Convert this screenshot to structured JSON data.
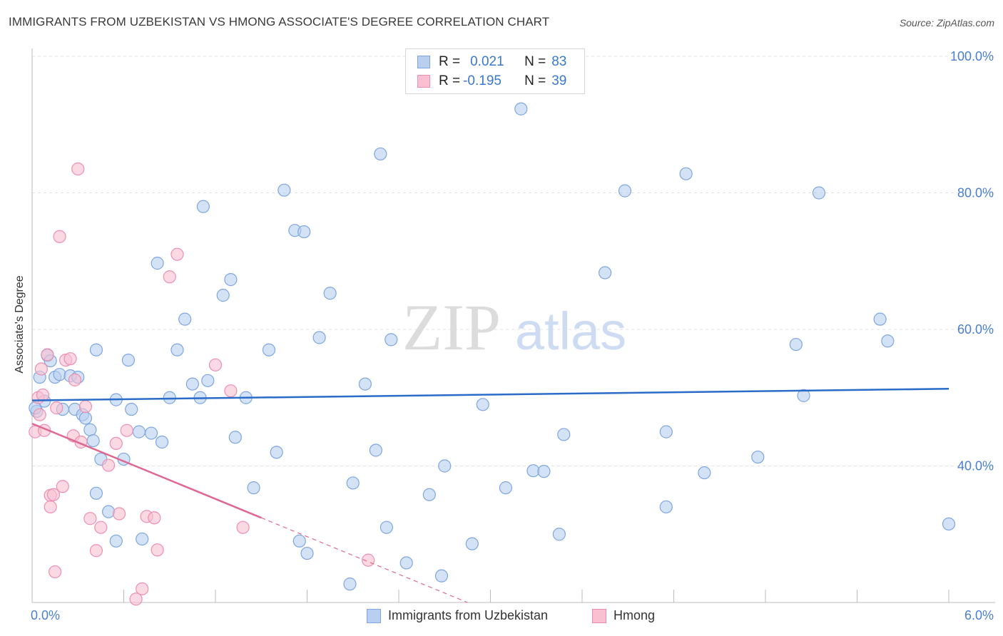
{
  "header": {
    "title": "IMMIGRANTS FROM UZBEKISTAN VS HMONG ASSOCIATE'S DEGREE CORRELATION CHART",
    "source": "Source: ZipAtlas.com"
  },
  "watermark": {
    "zip": "ZIP",
    "atlas": "atlas"
  },
  "legend_top": [
    {
      "r_label": "R =",
      "r_value": "0.021",
      "n_label": "N =",
      "n_value": "83"
    },
    {
      "r_label": "R =",
      "r_value": "-0.195",
      "n_label": "N =",
      "n_value": "39"
    }
  ],
  "legend_bottom": [
    "Immigrants from Uzbekistan",
    "Hmong"
  ],
  "colors": {
    "blue_fill": "#b8cff0",
    "blue_stroke": "#7ea6e0",
    "blue_line": "#2a6cc8",
    "pink_fill": "#f8c0d0",
    "pink_stroke": "#ec8fb0",
    "pink_line": "#e06890",
    "axis_text": "#4a7fd0",
    "grid": "#e2e2e2"
  },
  "chart_data": {
    "type": "scatter",
    "title": "IMMIGRANTS FROM UZBEKISTAN VS HMONG ASSOCIATE'S DEGREE CORRELATION CHART",
    "xlabel": "",
    "ylabel": "Associate's Degree",
    "xlim": [
      0,
      6
    ],
    "ylim": [
      20,
      100
    ],
    "x_tick_labels": [
      "0.0%",
      "6.0%"
    ],
    "y_ticks": [
      40,
      60,
      80,
      100
    ],
    "y_tick_labels": [
      "40.0%",
      "60.0%",
      "80.0%",
      "100.0%"
    ],
    "grid": true,
    "legend_position": "top-center",
    "series": [
      {
        "name": "Immigrants from Uzbekistan",
        "color": "#b8cff0",
        "r": 0.021,
        "n": 83,
        "trend": {
          "x": [
            0,
            6
          ],
          "y": [
            49.6,
            51.3
          ],
          "dashed_from": null
        },
        "points": [
          [
            0.03,
            48.0
          ],
          [
            0.05,
            53.0
          ],
          [
            0.08,
            49.5
          ],
          [
            0.1,
            56.2
          ],
          [
            0.12,
            55.4
          ],
          [
            0.15,
            53.0
          ],
          [
            0.18,
            53.4
          ],
          [
            0.2,
            48.3
          ],
          [
            0.25,
            53.2
          ],
          [
            0.28,
            48.3
          ],
          [
            0.3,
            53.0
          ],
          [
            0.33,
            47.5
          ],
          [
            0.35,
            47.0
          ],
          [
            0.38,
            45.3
          ],
          [
            0.42,
            36.0
          ],
          [
            0.4,
            43.7
          ],
          [
            0.42,
            57.0
          ],
          [
            0.45,
            41.0
          ],
          [
            0.5,
            33.3
          ],
          [
            0.55,
            29.0
          ],
          [
            0.55,
            49.7
          ],
          [
            0.6,
            41.0
          ],
          [
            0.63,
            55.5
          ],
          [
            0.65,
            48.3
          ],
          [
            0.7,
            45.0
          ],
          [
            0.72,
            29.3
          ],
          [
            0.78,
            44.8
          ],
          [
            0.82,
            69.7
          ],
          [
            0.85,
            43.5
          ],
          [
            0.9,
            50.0
          ],
          [
            0.95,
            57.0
          ],
          [
            1.0,
            61.5
          ],
          [
            1.05,
            52.0
          ],
          [
            1.1,
            50.0
          ],
          [
            1.12,
            78.0
          ],
          [
            1.15,
            52.5
          ],
          [
            1.25,
            65.0
          ],
          [
            1.3,
            67.3
          ],
          [
            1.33,
            44.2
          ],
          [
            1.4,
            50.0
          ],
          [
            1.45,
            36.8
          ],
          [
            1.55,
            57.0
          ],
          [
            1.6,
            42.0
          ],
          [
            1.65,
            80.4
          ],
          [
            1.72,
            74.5
          ],
          [
            1.78,
            74.3
          ],
          [
            1.75,
            29.0
          ],
          [
            1.8,
            27.2
          ],
          [
            1.88,
            58.8
          ],
          [
            1.95,
            65.3
          ],
          [
            2.08,
            22.7
          ],
          [
            2.1,
            37.5
          ],
          [
            2.18,
            52.0
          ],
          [
            2.25,
            42.3
          ],
          [
            2.28,
            85.7
          ],
          [
            2.32,
            31.0
          ],
          [
            2.35,
            58.5
          ],
          [
            2.45,
            25.8
          ],
          [
            2.6,
            35.8
          ],
          [
            2.68,
            23.9
          ],
          [
            2.7,
            40.0
          ],
          [
            2.88,
            28.6
          ],
          [
            2.95,
            49.0
          ],
          [
            3.1,
            36.8
          ],
          [
            3.2,
            92.3
          ],
          [
            3.28,
            39.3
          ],
          [
            3.35,
            39.2
          ],
          [
            3.45,
            30.0
          ],
          [
            3.48,
            44.6
          ],
          [
            3.75,
            68.3
          ],
          [
            3.88,
            80.3
          ],
          [
            4.15,
            45.0
          ],
          [
            4.15,
            34.0
          ],
          [
            4.28,
            82.8
          ],
          [
            4.4,
            39.0
          ],
          [
            4.75,
            41.3
          ],
          [
            5.0,
            57.8
          ],
          [
            5.05,
            50.3
          ],
          [
            5.15,
            80.0
          ],
          [
            5.55,
            61.5
          ],
          [
            5.6,
            58.3
          ],
          [
            6.0,
            31.5
          ],
          [
            0.02,
            48.5
          ]
        ]
      },
      {
        "name": "Hmong",
        "color": "#f8c0d0",
        "r": -0.195,
        "n": 39,
        "trend": {
          "x": [
            0,
            2.85
          ],
          "y": [
            46.2,
            20.0
          ],
          "dashed_from": 1.5
        },
        "points": [
          [
            0.02,
            45.0
          ],
          [
            0.04,
            50.0
          ],
          [
            0.05,
            47.5
          ],
          [
            0.06,
            54.2
          ],
          [
            0.07,
            50.4
          ],
          [
            0.08,
            45.2
          ],
          [
            0.1,
            56.3
          ],
          [
            0.12,
            35.7
          ],
          [
            0.14,
            35.8
          ],
          [
            0.12,
            34.0
          ],
          [
            0.15,
            24.5
          ],
          [
            0.16,
            48.5
          ],
          [
            0.18,
            73.6
          ],
          [
            0.2,
            37.0
          ],
          [
            0.22,
            55.5
          ],
          [
            0.25,
            55.7
          ],
          [
            0.27,
            44.4
          ],
          [
            0.28,
            52.6
          ],
          [
            0.3,
            83.5
          ],
          [
            0.32,
            43.5
          ],
          [
            0.35,
            48.7
          ],
          [
            0.38,
            32.3
          ],
          [
            0.42,
            27.6
          ],
          [
            0.45,
            31.0
          ],
          [
            0.5,
            40.1
          ],
          [
            0.55,
            43.3
          ],
          [
            0.57,
            33.0
          ],
          [
            0.62,
            45.2
          ],
          [
            0.68,
            20.5
          ],
          [
            0.72,
            22.0
          ],
          [
            0.75,
            32.6
          ],
          [
            0.8,
            32.4
          ],
          [
            0.82,
            27.7
          ],
          [
            0.9,
            67.7
          ],
          [
            0.95,
            71.0
          ],
          [
            1.2,
            54.8
          ],
          [
            1.3,
            51.0
          ],
          [
            1.38,
            31.0
          ],
          [
            2.2,
            26.2
          ]
        ]
      }
    ]
  }
}
